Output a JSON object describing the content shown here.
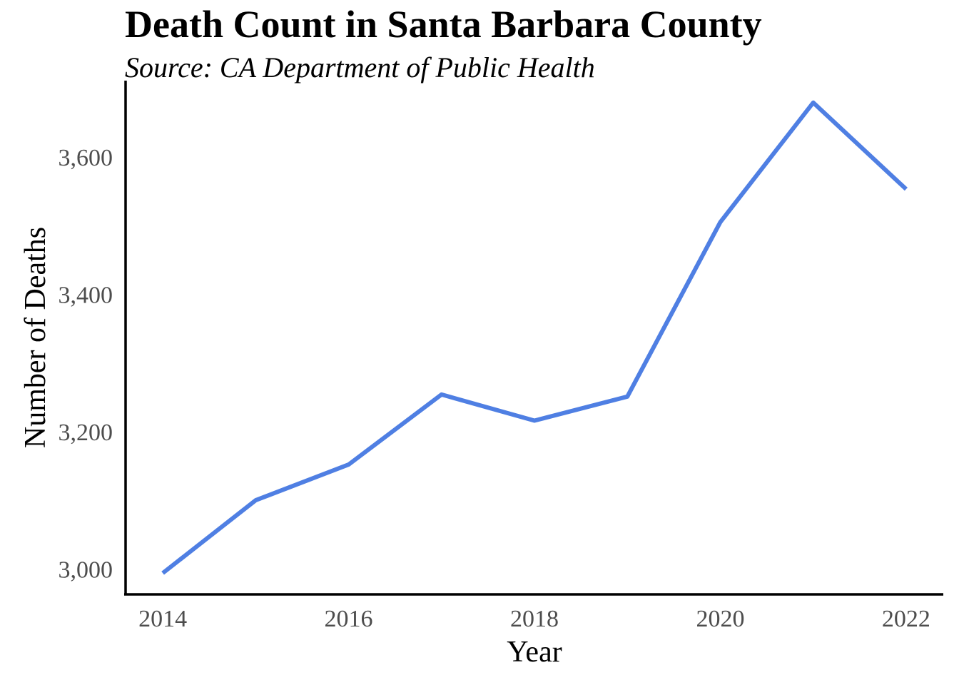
{
  "chart_data": {
    "type": "line",
    "title": "Death Count in Santa Barbara County",
    "subtitle": "Source: CA Department of Public Health",
    "xlabel": "Year",
    "ylabel": "Number of Deaths",
    "x": [
      2014,
      2015,
      2016,
      2017,
      2018,
      2019,
      2020,
      2021,
      2022
    ],
    "series": [
      {
        "values": [
          2994,
          3100,
          3152,
          3254,
          3216,
          3251,
          3505,
          3679,
          3553
        ],
        "color": "#4f7fe3"
      }
    ],
    "xticks": [
      2014,
      2016,
      2018,
      2020,
      2022
    ],
    "xtick_labels": [
      "2014",
      "2016",
      "2018",
      "2020",
      "2022"
    ],
    "yticks": [
      3000,
      3200,
      3400,
      3600
    ],
    "ytick_labels": [
      "3,000",
      "3,200",
      "3,400",
      "3,600"
    ],
    "xlim": [
      2013.6,
      2022.4
    ],
    "ylim": [
      2963,
      3711
    ],
    "grid": false,
    "legend": "none"
  }
}
